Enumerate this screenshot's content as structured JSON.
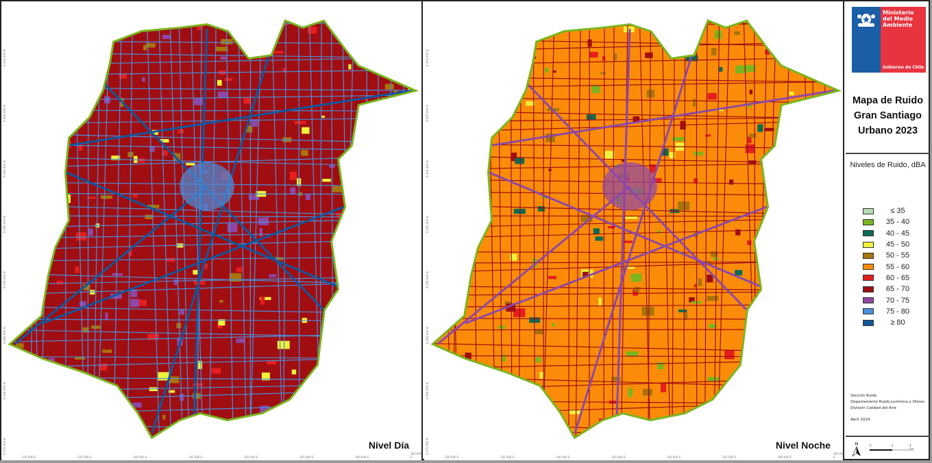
{
  "maps": [
    {
      "label": "Nivel Día",
      "tone": "day"
    },
    {
      "label": "Nivel Noche",
      "tone": "night"
    }
  ],
  "axis": {
    "x_ticks": [
      "330.000 E",
      "335.000 E",
      "340.000 E",
      "345.000 E",
      "350.000 E",
      "355.000 E",
      "360.000 E",
      "365.000 E"
    ],
    "y_ticks": [
      "6.310.000 N",
      "6.305.000 N",
      "6.300.000 N",
      "6.295.000 N",
      "6.290.000 N",
      "6.285.000 N",
      "6.280.000 N",
      "6.275.000 N"
    ]
  },
  "logo": {
    "ministry": "Ministerio del Medio Ambiente",
    "government": "Gobierno de Chile"
  },
  "title": {
    "line1": "Mapa de Ruido",
    "line2": "Gran Santiago",
    "line3": "Urbano 2023"
  },
  "legend": {
    "title": "Niveles de Ruido, dBA",
    "items": [
      {
        "label": "≤ 35",
        "color": "#b9dcb5"
      },
      {
        "label": "35 - 40",
        "color": "#7ab51d"
      },
      {
        "label": "40 - 45",
        "color": "#0d6b52"
      },
      {
        "label": "45 - 50",
        "color": "#f0f23a"
      },
      {
        "label": "50 - 55",
        "color": "#a8740a"
      },
      {
        "label": "55 - 60",
        "color": "#fb8c0a"
      },
      {
        "label": "60 - 65",
        "color": "#e51e1e"
      },
      {
        "label": "65 - 70",
        "color": "#a00e12"
      },
      {
        "label": "70 - 75",
        "color": "#8e47a6"
      },
      {
        "label": "75 - 80",
        "color": "#4a8fdc"
      },
      {
        "label": "≥ 80",
        "color": "#12579e"
      }
    ]
  },
  "credits": {
    "section": "Sección Ruido",
    "department": "Departamento Ruido,Lumínica y Olores",
    "division": "División Calidad del Aire",
    "date": "Abril 2024"
  },
  "scale": {
    "labels": [
      "0",
      "2",
      "4 km"
    ],
    "north": "N"
  }
}
